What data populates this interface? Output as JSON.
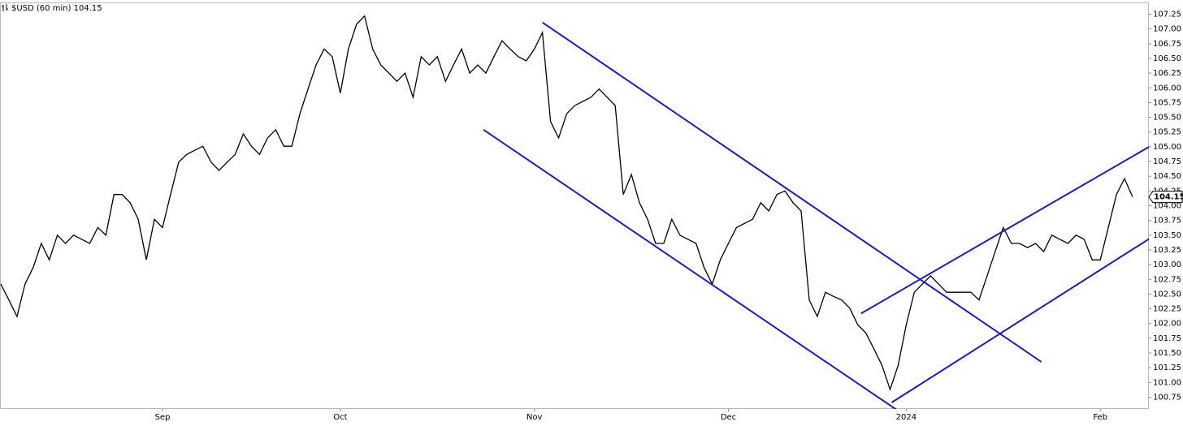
{
  "chart_data": {
    "type": "line",
    "title": "$USD (60 min) 104.15",
    "color": "#000000",
    "trend_color": "#1a1ad6",
    "grid": false,
    "categories": [
      null,
      null,
      null,
      null,
      null,
      null,
      null,
      null,
      null,
      null,
      null,
      null,
      null,
      null,
      null,
      null,
      null,
      null,
      null,
      null,
      "Sep",
      null,
      null,
      null,
      null,
      null,
      null,
      null,
      null,
      null,
      null,
      null,
      null,
      null,
      null,
      null,
      null,
      null,
      null,
      null,
      null,
      null,
      "Oct",
      null,
      null,
      null,
      null,
      null,
      null,
      null,
      null,
      null,
      null,
      null,
      null,
      null,
      null,
      null,
      null,
      null,
      null,
      null,
      null,
      null,
      null,
      null,
      "Nov",
      null,
      null,
      null,
      null,
      null,
      null,
      null,
      null,
      null,
      null,
      null,
      null,
      null,
      null,
      null,
      null,
      null,
      null,
      null,
      null,
      null,
      null,
      null,
      "Dec",
      null,
      null,
      null,
      null,
      null,
      null,
      null,
      null,
      null,
      null,
      null,
      null,
      null,
      null,
      null,
      null,
      null,
      null,
      null,
      null,
      null,
      "2024",
      null,
      null,
      null,
      null,
      null,
      null,
      null,
      null,
      null,
      null,
      null,
      null,
      null,
      null,
      null,
      null,
      null,
      null,
      null,
      null,
      null,
      null,
      null,
      "Feb",
      null,
      null,
      null,
      null
    ],
    "values": [
      102.67,
      102.4,
      102.12,
      102.67,
      102.95,
      103.36,
      103.08,
      103.5,
      103.36,
      103.5,
      103.43,
      103.36,
      103.63,
      103.5,
      104.19,
      104.19,
      104.05,
      103.77,
      103.08,
      103.77,
      103.63,
      104.19,
      104.74,
      104.87,
      104.94,
      105.01,
      104.74,
      104.6,
      104.74,
      104.87,
      105.22,
      105.01,
      104.87,
      105.15,
      105.29,
      105.01,
      105.01,
      105.56,
      105.98,
      106.39,
      106.66,
      106.53,
      105.91,
      106.66,
      107.08,
      107.22,
      106.66,
      106.39,
      106.25,
      106.11,
      106.25,
      105.84,
      106.53,
      106.39,
      106.53,
      106.11,
      106.39,
      106.66,
      106.25,
      106.39,
      106.25,
      106.53,
      106.8,
      106.66,
      106.53,
      106.46,
      106.66,
      106.94,
      105.43,
      105.15,
      105.56,
      105.7,
      105.77,
      105.84,
      105.98,
      105.84,
      105.7,
      104.19,
      104.53,
      104.05,
      103.77,
      103.36,
      103.36,
      103.77,
      103.5,
      103.43,
      103.36,
      102.95,
      102.67,
      103.08,
      103.36,
      103.63,
      103.7,
      103.77,
      104.05,
      103.91,
      104.19,
      104.25,
      104.05,
      103.91,
      102.4,
      102.12,
      102.53,
      102.46,
      102.4,
      102.26,
      101.98,
      101.84,
      101.57,
      101.29,
      100.88,
      101.29,
      101.98,
      102.53,
      102.67,
      102.81,
      102.67,
      102.53,
      102.53,
      102.53,
      102.53,
      102.4,
      102.81,
      103.22,
      103.63,
      103.36,
      103.36,
      103.29,
      103.36,
      103.22,
      103.5,
      103.43,
      103.36,
      103.5,
      103.43,
      103.08,
      103.08,
      103.63,
      104.19,
      104.46,
      104.15
    ],
    "last_price": 104.15,
    "ylim": [
      100.55,
      107.45
    ],
    "yticks": [
      100.75,
      {
        "value": 101,
        "label": "101.00"
      },
      101.25,
      {
        "value": 101.5,
        "label": "101.50"
      },
      101.75,
      {
        "value": 102,
        "label": "102.00"
      },
      102.25,
      {
        "value": 102.5,
        "label": "102.50"
      },
      102.75,
      {
        "value": 103,
        "label": "103.00"
      },
      103.25,
      {
        "value": 103.5,
        "label": "103.50"
      },
      103.75,
      {
        "value": 104,
        "label": "104.00"
      },
      104.25,
      {
        "value": 104.5,
        "label": "104.50"
      },
      104.75,
      {
        "value": 105,
        "label": "105.00"
      },
      105.25,
      {
        "value": 105.5,
        "label": "105.50"
      },
      105.75,
      {
        "value": 106,
        "label": "106.00"
      },
      106.25,
      {
        "value": 106.5,
        "label": "106.50"
      },
      106.75,
      {
        "value": 107,
        "label": "107.00"
      },
      107.25
    ],
    "trendlines": [
      {
        "x": [
          67.0,
          128.7
        ],
        "y": [
          107.11,
          101.35
        ]
      },
      {
        "x": [
          59.7,
          112.7
        ],
        "y": [
          105.29,
          100.36
        ]
      },
      {
        "x": [
          110.2,
          146.2
        ],
        "y": [
          100.66,
          103.8
        ]
      },
      {
        "x": [
          106.4,
          146.2
        ],
        "y": [
          102.17,
          105.33
        ]
      }
    ]
  }
}
